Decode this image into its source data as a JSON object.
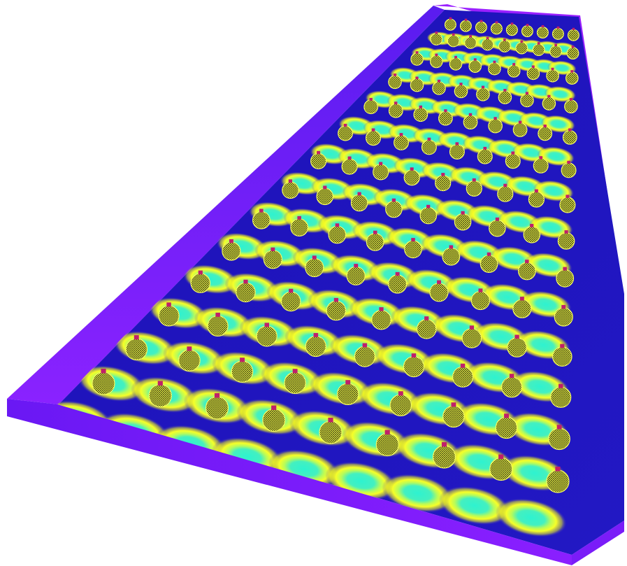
{
  "scene": {
    "view": "perspective",
    "rows": 14,
    "lights_per_row": 9,
    "colors": {
      "background": "#ffffff",
      "wall_light": "#8a1fff",
      "wall_dark": "#6a10e8",
      "floor_dark": "#1a0fb0",
      "floor_mid": "#2a22c8",
      "glow_outer": "#f8ff2a",
      "glow_mid": "#e8ff40",
      "glow_core": "#36f0c8",
      "fixture_body": "#e8f040",
      "fixture_mesh": "#3a3a10",
      "fixture_cap": "#c0206a"
    }
  }
}
